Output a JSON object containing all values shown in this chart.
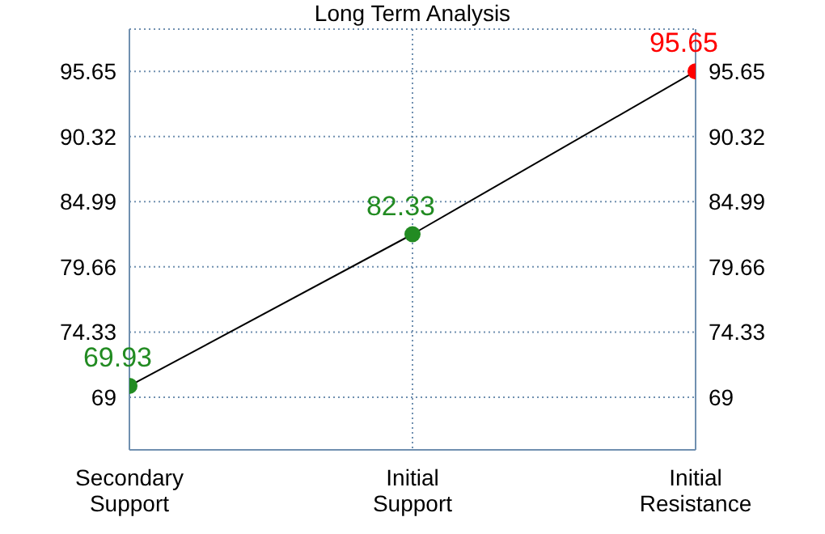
{
  "chart_data": {
    "type": "line",
    "title": "Long Term Analysis",
    "categories": [
      "Secondary Support",
      "Initial Support",
      "Initial Resistance"
    ],
    "series": [
      {
        "color": "#000000",
        "colors": [
          "#228b22",
          "#228b22",
          "#ff0000"
        ],
        "values": [
          69.93,
          82.33,
          95.65
        ]
      }
    ],
    "ylim": [
      64.7,
      99.1
    ],
    "yticks": [
      69,
      74.33,
      79.66,
      84.99,
      90.32,
      95.65
    ],
    "y2lim": [
      64.7,
      99.1
    ],
    "y2ticks": [
      69,
      74.33,
      79.66,
      84.99,
      90.32,
      95.65
    ],
    "grid": true,
    "marker": "circle",
    "line_style": "solid",
    "data_labels": true,
    "legend": false
  }
}
